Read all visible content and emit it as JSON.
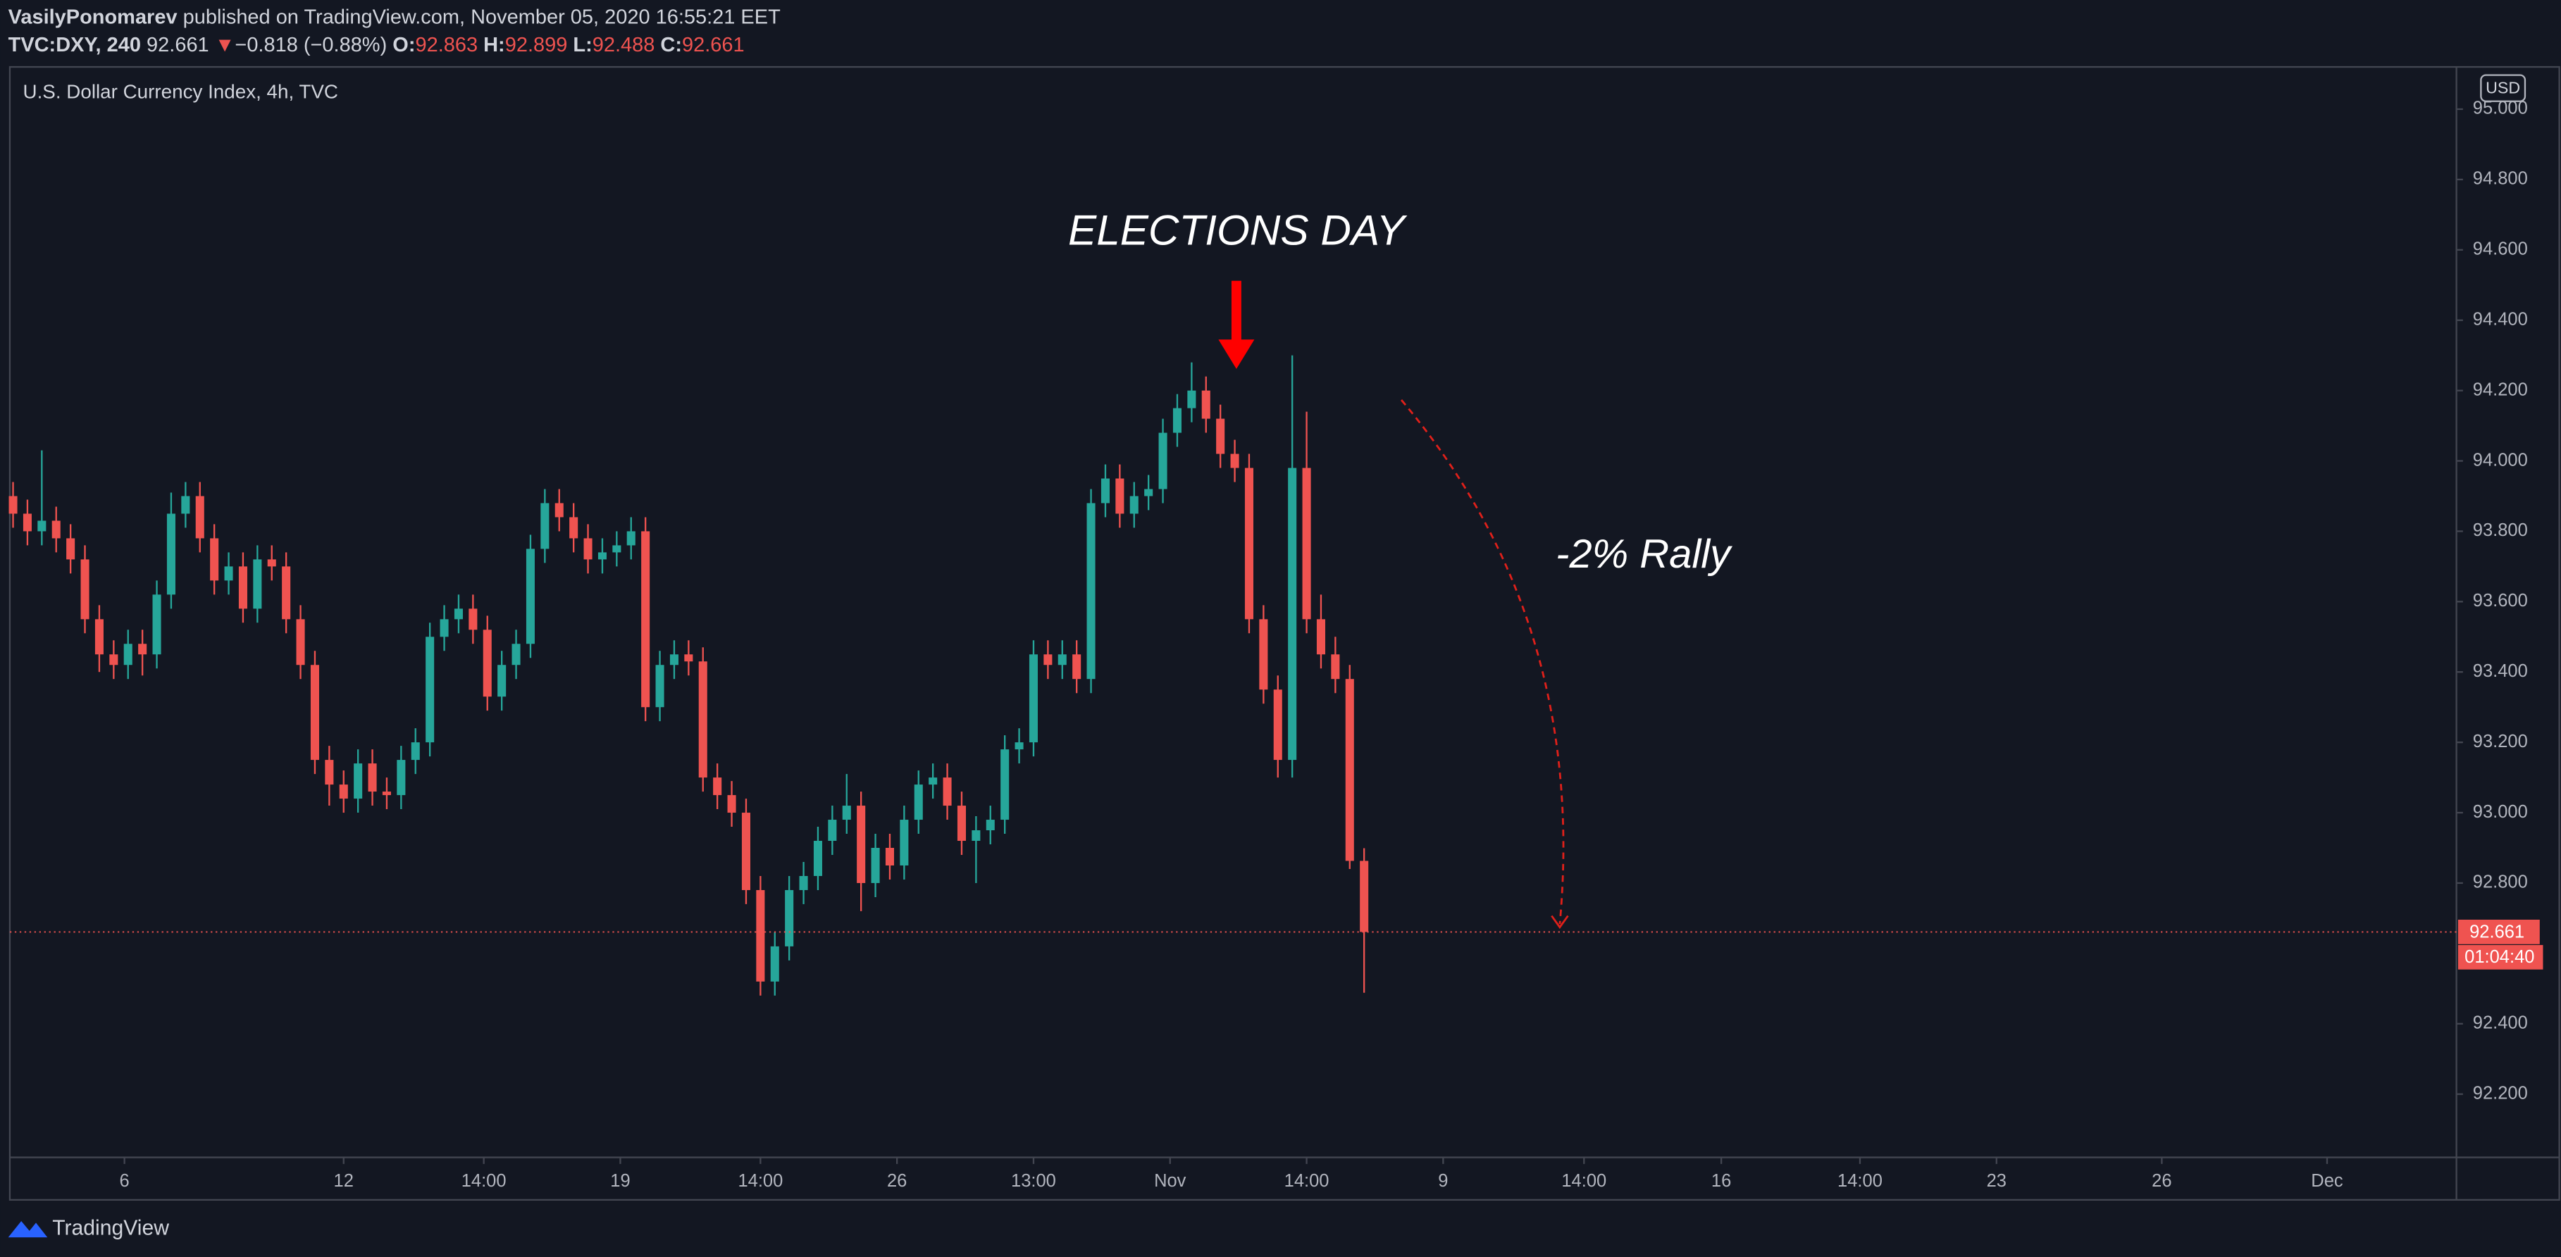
{
  "header": {
    "author": "VasilyPonomarev",
    "published": "published on TradingView.com, November 05, 2020 16:55:21 EET",
    "symbol": "TVC:DXY, 240",
    "last": "92.661",
    "arrow": "▼",
    "change": "−0.818 (−0.88%)",
    "o_label": "O:",
    "o": "92.863",
    "h_label": "H:",
    "h": "92.899",
    "l_label": "L:",
    "l": "92.488",
    "c_label": "C:",
    "c": "92.661"
  },
  "footer": {
    "brand": "TradingView"
  },
  "chart_data": {
    "type": "candlestick",
    "title": "U.S. Dollar Currency Index, 4h, TVC",
    "currency": "USD",
    "annotations": [
      "ELECTIONS DAY",
      "-2% Rally"
    ],
    "countdown": "01:04:40",
    "up_color": "#26a69a",
    "down_color": "#ef5350",
    "grid": false,
    "x": [
      0,
      2,
      4,
      6,
      8,
      10,
      12,
      14,
      16,
      18,
      20,
      22,
      24,
      26,
      28,
      30,
      32,
      34,
      36,
      38,
      40,
      42,
      44,
      46,
      48,
      50,
      52,
      54,
      56,
      58,
      60,
      62,
      64,
      66,
      68,
      70,
      72,
      74,
      76,
      78,
      80,
      82,
      84,
      86,
      88,
      90,
      92,
      94,
      96,
      98,
      100,
      102,
      104,
      106,
      108,
      110,
      112,
      114,
      116,
      118,
      120,
      122,
      124,
      126,
      128,
      130,
      132,
      134,
      136,
      138,
      140,
      142,
      144,
      146,
      148,
      150,
      152,
      154,
      156,
      158,
      160,
      162,
      164,
      166,
      168,
      170,
      172,
      174,
      176,
      178,
      180,
      182,
      184,
      186,
      188
    ],
    "ohlc": [
      [
        93.9,
        93.94,
        93.81,
        93.85
      ],
      [
        93.85,
        93.89,
        93.76,
        93.8
      ],
      [
        93.8,
        94.03,
        93.76,
        93.83
      ],
      [
        93.83,
        93.87,
        93.74,
        93.78
      ],
      [
        93.78,
        93.82,
        93.68,
        93.72
      ],
      [
        93.72,
        93.76,
        93.51,
        93.55
      ],
      [
        93.55,
        93.59,
        93.4,
        93.45
      ],
      [
        93.45,
        93.49,
        93.38,
        93.42
      ],
      [
        93.42,
        93.52,
        93.38,
        93.48
      ],
      [
        93.48,
        93.52,
        93.39,
        93.45
      ],
      [
        93.45,
        93.66,
        93.41,
        93.62
      ],
      [
        93.62,
        93.91,
        93.58,
        93.85
      ],
      [
        93.85,
        93.94,
        93.81,
        93.9
      ],
      [
        93.9,
        93.94,
        93.74,
        93.78
      ],
      [
        93.78,
        93.82,
        93.62,
        93.66
      ],
      [
        93.66,
        93.74,
        93.62,
        93.7
      ],
      [
        93.7,
        93.74,
        93.54,
        93.58
      ],
      [
        93.58,
        93.76,
        93.54,
        93.72
      ],
      [
        93.72,
        93.76,
        93.66,
        93.7
      ],
      [
        93.7,
        93.74,
        93.51,
        93.55
      ],
      [
        93.55,
        93.59,
        93.38,
        93.42
      ],
      [
        93.42,
        93.46,
        93.11,
        93.15
      ],
      [
        93.15,
        93.19,
        93.02,
        93.08
      ],
      [
        93.08,
        93.12,
        93.0,
        93.04
      ],
      [
        93.04,
        93.18,
        93.0,
        93.14
      ],
      [
        93.14,
        93.18,
        93.02,
        93.06
      ],
      [
        93.06,
        93.1,
        93.01,
        93.05
      ],
      [
        93.05,
        93.19,
        93.01,
        93.15
      ],
      [
        93.15,
        93.24,
        93.11,
        93.2
      ],
      [
        93.2,
        93.54,
        93.16,
        93.5
      ],
      [
        93.5,
        93.59,
        93.46,
        93.55
      ],
      [
        93.55,
        93.62,
        93.51,
        93.58
      ],
      [
        93.58,
        93.62,
        93.48,
        93.52
      ],
      [
        93.52,
        93.56,
        93.29,
        93.33
      ],
      [
        93.33,
        93.46,
        93.29,
        93.42
      ],
      [
        93.42,
        93.52,
        93.38,
        93.48
      ],
      [
        93.48,
        93.79,
        93.44,
        93.75
      ],
      [
        93.75,
        93.92,
        93.71,
        93.88
      ],
      [
        93.88,
        93.92,
        93.8,
        93.84
      ],
      [
        93.84,
        93.88,
        93.74,
        93.78
      ],
      [
        93.78,
        93.82,
        93.68,
        93.72
      ],
      [
        93.72,
        93.78,
        93.68,
        93.74
      ],
      [
        93.74,
        93.8,
        93.7,
        93.76
      ],
      [
        93.76,
        93.84,
        93.72,
        93.8
      ],
      [
        93.8,
        93.84,
        93.26,
        93.3
      ],
      [
        93.3,
        93.46,
        93.26,
        93.42
      ],
      [
        93.42,
        93.49,
        93.38,
        93.45
      ],
      [
        93.45,
        93.49,
        93.39,
        93.43
      ],
      [
        93.43,
        93.47,
        93.06,
        93.1
      ],
      [
        93.1,
        93.14,
        93.01,
        93.05
      ],
      [
        93.05,
        93.09,
        92.96,
        93.0
      ],
      [
        93.0,
        93.04,
        92.74,
        92.78
      ],
      [
        92.78,
        92.82,
        92.48,
        92.52
      ],
      [
        92.52,
        92.66,
        92.48,
        92.62
      ],
      [
        92.62,
        92.82,
        92.58,
        92.78
      ],
      [
        92.78,
        92.86,
        92.74,
        92.82
      ],
      [
        92.82,
        92.96,
        92.78,
        92.92
      ],
      [
        92.92,
        93.02,
        92.88,
        92.98
      ],
      [
        92.98,
        93.11,
        92.94,
        93.02
      ],
      [
        93.02,
        93.06,
        92.72,
        92.8
      ],
      [
        92.8,
        92.94,
        92.76,
        92.9
      ],
      [
        92.9,
        92.94,
        92.81,
        92.85
      ],
      [
        92.85,
        93.02,
        92.81,
        92.98
      ],
      [
        92.98,
        93.12,
        92.94,
        93.08
      ],
      [
        93.08,
        93.14,
        93.04,
        93.1
      ],
      [
        93.1,
        93.14,
        92.98,
        93.02
      ],
      [
        93.02,
        93.06,
        92.88,
        92.92
      ],
      [
        92.92,
        92.99,
        92.8,
        92.95
      ],
      [
        92.95,
        93.02,
        92.91,
        92.98
      ],
      [
        92.98,
        93.22,
        92.94,
        93.18
      ],
      [
        93.18,
        93.24,
        93.14,
        93.2
      ],
      [
        93.2,
        93.49,
        93.16,
        93.45
      ],
      [
        93.45,
        93.49,
        93.38,
        93.42
      ],
      [
        93.42,
        93.49,
        93.38,
        93.45
      ],
      [
        93.45,
        93.49,
        93.34,
        93.38
      ],
      [
        93.38,
        93.92,
        93.34,
        93.88
      ],
      [
        93.88,
        93.99,
        93.84,
        93.95
      ],
      [
        93.95,
        93.99,
        93.81,
        93.85
      ],
      [
        93.85,
        93.94,
        93.81,
        93.9
      ],
      [
        93.9,
        93.96,
        93.86,
        93.92
      ],
      [
        93.92,
        94.12,
        93.88,
        94.08
      ],
      [
        94.08,
        94.19,
        94.04,
        94.15
      ],
      [
        94.15,
        94.28,
        94.11,
        94.2
      ],
      [
        94.2,
        94.24,
        94.08,
        94.12
      ],
      [
        94.12,
        94.16,
        93.98,
        94.02
      ],
      [
        94.02,
        94.06,
        93.94,
        93.98
      ],
      [
        93.98,
        94.02,
        93.51,
        93.55
      ],
      [
        93.55,
        93.59,
        93.31,
        93.35
      ],
      [
        93.35,
        93.39,
        93.1,
        93.15
      ],
      [
        93.15,
        94.3,
        93.1,
        93.98
      ],
      [
        93.98,
        94.14,
        93.51,
        93.55
      ],
      [
        93.55,
        93.62,
        93.41,
        93.45
      ],
      [
        93.45,
        93.5,
        93.34,
        93.38
      ],
      [
        93.38,
        93.42,
        92.84,
        92.863
      ],
      [
        92.863,
        92.899,
        92.488,
        92.661
      ]
    ],
    "xlim": [
      -0.45,
      340
    ],
    "ylim": [
      92.02,
      95.12
    ],
    "yticks": [
      {
        "value": 95.0,
        "label": "95.000"
      },
      {
        "value": 94.8,
        "label": "94.800"
      },
      {
        "value": 94.6,
        "label": "94.600"
      },
      {
        "value": 94.4,
        "label": "94.400"
      },
      {
        "value": 94.2,
        "label": "94.200"
      },
      {
        "value": 94.0,
        "label": "94.000"
      },
      {
        "value": 93.8,
        "label": "93.800"
      },
      {
        "value": 93.6,
        "label": "93.600"
      },
      {
        "value": 93.4,
        "label": "93.400"
      },
      {
        "value": 93.2,
        "label": "93.200"
      },
      {
        "value": 93.0,
        "label": "93.000"
      },
      {
        "value": 92.8,
        "label": "92.800"
      },
      {
        "value": 92.4,
        "label": "92.400"
      },
      {
        "value": 92.2,
        "label": "92.200"
      }
    ],
    "xticks": [
      {
        "value": 15.5,
        "label": "6"
      },
      {
        "value": 46,
        "label": "12"
      },
      {
        "value": 65.5,
        "label": "14:00"
      },
      {
        "value": 84.5,
        "label": "19"
      },
      {
        "value": 104,
        "label": "14:00"
      },
      {
        "value": 123,
        "label": "26"
      },
      {
        "value": 142,
        "label": "13:00"
      },
      {
        "value": 161,
        "label": "Nov"
      },
      {
        "value": 180,
        "label": "14:00"
      },
      {
        "value": 199,
        "label": "9"
      },
      {
        "value": 218.6,
        "label": "14:00"
      },
      {
        "value": 237.7,
        "label": "16"
      },
      {
        "value": 257,
        "label": "14:00"
      },
      {
        "value": 276,
        "label": "23"
      },
      {
        "value": 299,
        "label": "26"
      },
      {
        "value": 322,
        "label": "Dec"
      }
    ]
  }
}
